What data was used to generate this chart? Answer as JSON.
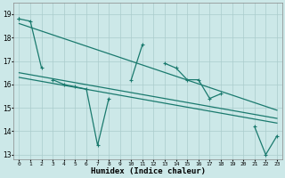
{
  "xlabel": "Humidex (Indice chaleur)",
  "background_color": "#cce8e8",
  "grid_color": "#aacccc",
  "line_color": "#1a7a6e",
  "x_values": [
    0,
    1,
    2,
    3,
    4,
    5,
    6,
    7,
    8,
    9,
    10,
    11,
    12,
    13,
    14,
    15,
    16,
    17,
    18,
    19,
    20,
    21,
    22,
    23
  ],
  "main_series": [
    18.8,
    null,
    null,
    16.2,
    16.0,
    15.9,
    15.8,
    13.4,
    15.4,
    null,
    16.2,
    17.7,
    null,
    16.9,
    16.7,
    16.2,
    16.2,
    15.4,
    15.6,
    null,
    null,
    14.2,
    13.0,
    13.8
  ],
  "top_series": [
    18.8,
    18.7,
    16.7,
    null,
    null,
    null,
    null,
    null,
    null,
    null,
    null,
    null,
    null,
    null,
    null,
    null,
    null,
    null,
    null,
    null,
    null,
    null,
    null,
    null
  ],
  "trend1_x": [
    0,
    23
  ],
  "trend1_y": [
    18.6,
    14.9
  ],
  "trend2_x": [
    0,
    23
  ],
  "trend2_y": [
    16.5,
    14.55
  ],
  "trend3_x": [
    0,
    23
  ],
  "trend3_y": [
    16.3,
    14.35
  ],
  "ylim": [
    12.8,
    19.5
  ],
  "xlim": [
    -0.5,
    23.5
  ],
  "yticks": [
    13,
    14,
    15,
    16,
    17,
    18,
    19
  ],
  "xticks": [
    0,
    1,
    2,
    3,
    4,
    5,
    6,
    7,
    8,
    9,
    10,
    11,
    12,
    13,
    14,
    15,
    16,
    17,
    18,
    19,
    20,
    21,
    22,
    23
  ]
}
